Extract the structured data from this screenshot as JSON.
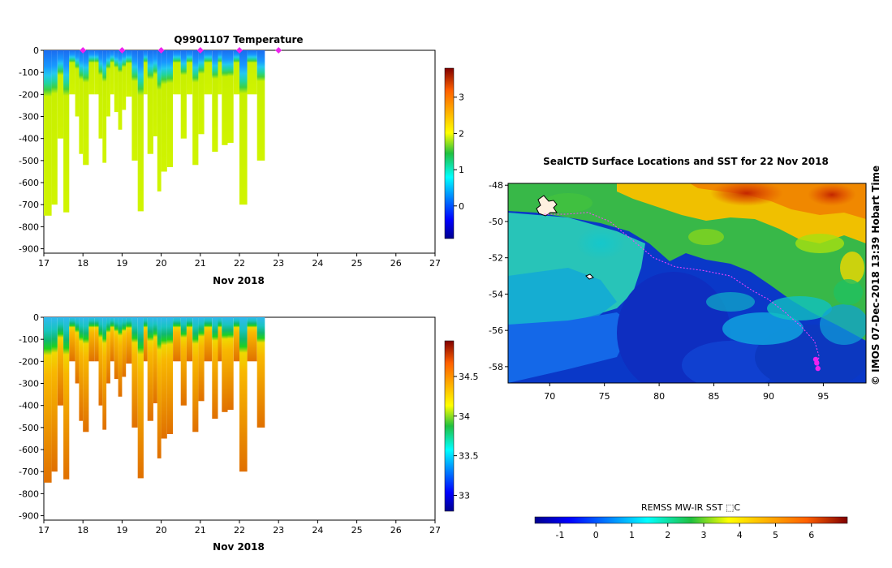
{
  "chart_data": [
    {
      "type": "heatmap",
      "title": "Q9901107  Temperature",
      "xlabel": "Nov 2018",
      "x_ticks": [
        "17",
        "18",
        "19",
        "20",
        "21",
        "22",
        "23",
        "24",
        "25",
        "26",
        "27"
      ],
      "xlim": [
        17,
        27
      ],
      "ylim": [
        -920,
        0
      ],
      "y_ticks": [
        "0",
        "-100",
        "-200",
        "-300",
        "-400",
        "-500",
        "-600",
        "-700",
        "-800",
        "-900"
      ],
      "colorbar": {
        "range": [
          -0.9,
          3.8
        ],
        "ticks": [
          "0",
          "1",
          "2",
          "3"
        ],
        "tick_values": [
          0,
          1,
          2,
          3
        ]
      },
      "surface_markers_day": [
        18,
        19,
        20,
        21,
        22,
        23
      ],
      "profiles": [
        {
          "day": 17.0,
          "depth": 750
        },
        {
          "day": 17.2,
          "depth": 700
        },
        {
          "day": 17.35,
          "depth": 400
        },
        {
          "day": 17.5,
          "depth": 735
        },
        {
          "day": 17.65,
          "depth": 200
        },
        {
          "day": 17.8,
          "depth": 300
        },
        {
          "day": 17.9,
          "depth": 470
        },
        {
          "day": 18.0,
          "depth": 520
        },
        {
          "day": 18.15,
          "depth": 200
        },
        {
          "day": 18.3,
          "depth": 200
        },
        {
          "day": 18.4,
          "depth": 400
        },
        {
          "day": 18.5,
          "depth": 510
        },
        {
          "day": 18.6,
          "depth": 300
        },
        {
          "day": 18.7,
          "depth": 200
        },
        {
          "day": 18.8,
          "depth": 280
        },
        {
          "day": 18.9,
          "depth": 360
        },
        {
          "day": 19.0,
          "depth": 270
        },
        {
          "day": 19.1,
          "depth": 210
        },
        {
          "day": 19.25,
          "depth": 500
        },
        {
          "day": 19.4,
          "depth": 730
        },
        {
          "day": 19.55,
          "depth": 200
        },
        {
          "day": 19.65,
          "depth": 470
        },
        {
          "day": 19.8,
          "depth": 390
        },
        {
          "day": 19.9,
          "depth": 640
        },
        {
          "day": 20.0,
          "depth": 550
        },
        {
          "day": 20.15,
          "depth": 530
        },
        {
          "day": 20.3,
          "depth": 200
        },
        {
          "day": 20.5,
          "depth": 400
        },
        {
          "day": 20.65,
          "depth": 200
        },
        {
          "day": 20.8,
          "depth": 520
        },
        {
          "day": 20.95,
          "depth": 380
        },
        {
          "day": 21.1,
          "depth": 200
        },
        {
          "day": 21.3,
          "depth": 460
        },
        {
          "day": 21.45,
          "depth": 200
        },
        {
          "day": 21.55,
          "depth": 430
        },
        {
          "day": 21.7,
          "depth": 420
        },
        {
          "day": 21.85,
          "depth": 200
        },
        {
          "day": 22.0,
          "depth": 700
        },
        {
          "day": 22.2,
          "depth": 200
        },
        {
          "day": 22.45,
          "depth": 500
        }
      ]
    },
    {
      "type": "heatmap",
      "title": "",
      "xlabel": "Nov 2018",
      "x_ticks": [
        "17",
        "18",
        "19",
        "20",
        "21",
        "22",
        "23",
        "24",
        "25",
        "26",
        "27"
      ],
      "xlim": [
        17,
        27
      ],
      "ylim": [
        -920,
        0
      ],
      "y_ticks": [
        "0",
        "-100",
        "-200",
        "-300",
        "-400",
        "-500",
        "-600",
        "-700",
        "-800",
        "-900"
      ],
      "colorbar": {
        "range": [
          32.8,
          34.95
        ],
        "ticks": [
          "33",
          "33.5",
          "34",
          "34.5"
        ],
        "tick_values": [
          33,
          33.5,
          34,
          34.5
        ]
      },
      "profiles": [
        {
          "day": 17.0,
          "depth": 750
        },
        {
          "day": 17.2,
          "depth": 700
        },
        {
          "day": 17.35,
          "depth": 400
        },
        {
          "day": 17.5,
          "depth": 735
        },
        {
          "day": 17.65,
          "depth": 200
        },
        {
          "day": 17.8,
          "depth": 300
        },
        {
          "day": 17.9,
          "depth": 470
        },
        {
          "day": 18.0,
          "depth": 520
        },
        {
          "day": 18.15,
          "depth": 200
        },
        {
          "day": 18.3,
          "depth": 200
        },
        {
          "day": 18.4,
          "depth": 400
        },
        {
          "day": 18.5,
          "depth": 510
        },
        {
          "day": 18.6,
          "depth": 300
        },
        {
          "day": 18.7,
          "depth": 200
        },
        {
          "day": 18.8,
          "depth": 280
        },
        {
          "day": 18.9,
          "depth": 360
        },
        {
          "day": 19.0,
          "depth": 270
        },
        {
          "day": 19.1,
          "depth": 210
        },
        {
          "day": 19.25,
          "depth": 500
        },
        {
          "day": 19.4,
          "depth": 730
        },
        {
          "day": 19.55,
          "depth": 200
        },
        {
          "day": 19.65,
          "depth": 470
        },
        {
          "day": 19.8,
          "depth": 390
        },
        {
          "day": 19.9,
          "depth": 640
        },
        {
          "day": 20.0,
          "depth": 550
        },
        {
          "day": 20.15,
          "depth": 530
        },
        {
          "day": 20.3,
          "depth": 200
        },
        {
          "day": 20.5,
          "depth": 400
        },
        {
          "day": 20.65,
          "depth": 200
        },
        {
          "day": 20.8,
          "depth": 520
        },
        {
          "day": 20.95,
          "depth": 380
        },
        {
          "day": 21.1,
          "depth": 200
        },
        {
          "day": 21.3,
          "depth": 460
        },
        {
          "day": 21.45,
          "depth": 200
        },
        {
          "day": 21.55,
          "depth": 430
        },
        {
          "day": 21.7,
          "depth": 420
        },
        {
          "day": 21.85,
          "depth": 200
        },
        {
          "day": 22.0,
          "depth": 700
        },
        {
          "day": 22.2,
          "depth": 200
        },
        {
          "day": 22.45,
          "depth": 500
        }
      ]
    },
    {
      "type": "heatmap",
      "title": "SealCTD Surface Locations and SST for 22 Nov 2018",
      "x_ticks": [
        "70",
        "75",
        "80",
        "85",
        "90",
        "95"
      ],
      "x_tick_values": [
        70,
        75,
        80,
        85,
        90,
        95
      ],
      "y_ticks": [
        "-48",
        "-50",
        "-52",
        "-54",
        "-56",
        "-58"
      ],
      "y_tick_values": [
        -48,
        -50,
        -52,
        -54,
        -56,
        -58
      ],
      "xlim": [
        66.2,
        98.9
      ],
      "ylim": [
        -58.9,
        -47.9
      ],
      "colorbar": {
        "label": "REMSS MW-IR SST ⬚C",
        "range": [
          -1.7,
          7.0
        ],
        "ticks": [
          "-1",
          "0",
          "1",
          "2",
          "3",
          "4",
          "5",
          "6"
        ],
        "tick_values": [
          -1,
          0,
          1,
          2,
          3,
          4,
          5,
          6
        ]
      },
      "track": [
        [
          69.5,
          -49.6
        ],
        [
          71.5,
          -49.6
        ],
        [
          73.5,
          -49.5
        ],
        [
          75.5,
          -50.0
        ],
        [
          77.5,
          -51.0
        ],
        [
          79.5,
          -52.0
        ],
        [
          81.5,
          -52.5
        ],
        [
          84.0,
          -52.7
        ],
        [
          86.5,
          -53.0
        ],
        [
          88.5,
          -53.8
        ],
        [
          90.0,
          -54.3
        ],
        [
          91.5,
          -55.0
        ],
        [
          93.0,
          -55.8
        ],
        [
          94.2,
          -56.6
        ],
        [
          94.6,
          -57.4
        ],
        [
          94.5,
          -58.0
        ]
      ],
      "profile_locations": [
        [
          94.3,
          -57.6
        ],
        [
          94.4,
          -57.8
        ],
        [
          94.5,
          -58.1
        ]
      ]
    }
  ],
  "footer": {
    "timestamp": "© IMOS 07-Dec-2018 13:39 Hobart Time"
  },
  "colors": {
    "track": "#ff44ff",
    "marker": "#ee22ee",
    "land": "#ffffff"
  }
}
